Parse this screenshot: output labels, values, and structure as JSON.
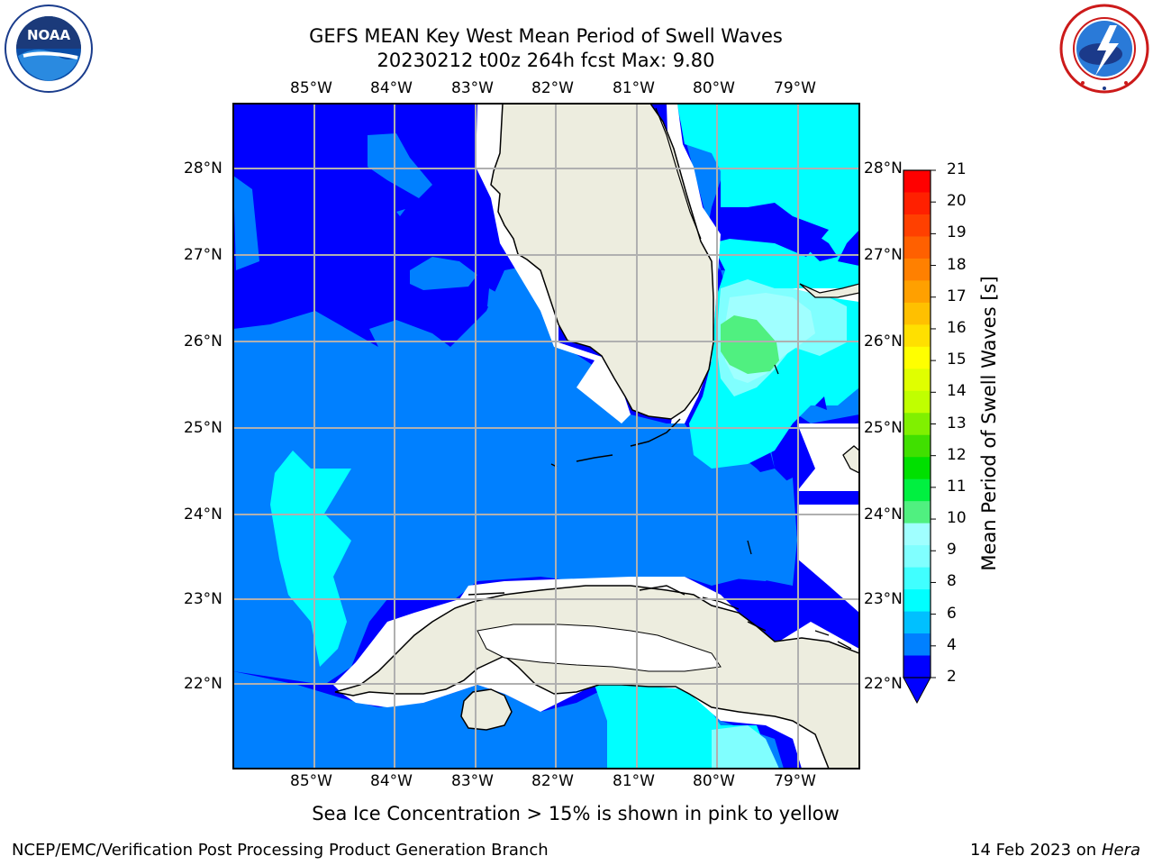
{
  "header": {
    "title_line1": "GEFS MEAN Key West Mean Period of Swell Waves",
    "title_line2": "20230212 t00z 264h fcst   Max: 9.80"
  },
  "logos": {
    "left": "NOAA",
    "left_ring": "NATIONAL OCEANIC AND ATMOSPHERIC ADMINISTRATION · U.S. DEPARTMENT OF COMMERCE",
    "right_ring": "NATIONAL WEATHER SERVICE"
  },
  "map": {
    "lon_labels": [
      "85°W",
      "84°W",
      "83°W",
      "82°W",
      "81°W",
      "80°W",
      "79°W"
    ],
    "lat_labels": [
      "28°N",
      "27°N",
      "26°N",
      "25°N",
      "24°N",
      "23°N",
      "22°N"
    ],
    "colors": {
      "ocean_dark": "#0000ff",
      "ocean_mid": "#0080ff",
      "cyan": "#00ffff",
      "cyan_light": "#80ffff",
      "cyan_pale": "#a0ffff",
      "green": "#50f080",
      "land": "#ededdf",
      "grid": "#b0b0b0"
    }
  },
  "colorbar": {
    "label": "Mean Period of Swell Waves [s]",
    "ticks": [
      "21",
      "20",
      "19",
      "18",
      "17",
      "16",
      "15",
      "14",
      "13",
      "12",
      "11",
      "10",
      "9",
      "8",
      "6",
      "4",
      "2"
    ],
    "colors_top_to_bottom": [
      "#ff0000",
      "#ff2000",
      "#ff4000",
      "#ff6000",
      "#ff8000",
      "#ffa000",
      "#ffc000",
      "#ffe000",
      "#ffff00",
      "#e0ff00",
      "#c0ff00",
      "#80f000",
      "#40e000",
      "#00e000",
      "#00f040",
      "#50f080",
      "#a0ffff",
      "#80ffff",
      "#40ffff",
      "#00ffff",
      "#00c0ff",
      "#0080ff",
      "#0000ff"
    ]
  },
  "notes": {
    "sea_ice": "Sea Ice Concentration > 15% is shown in pink to yellow"
  },
  "footer": {
    "left": "NCEP/EMC/Verification Post Processing Product Generation Branch",
    "right_date": "14 Feb 2023 on",
    "right_host": "Hera"
  }
}
